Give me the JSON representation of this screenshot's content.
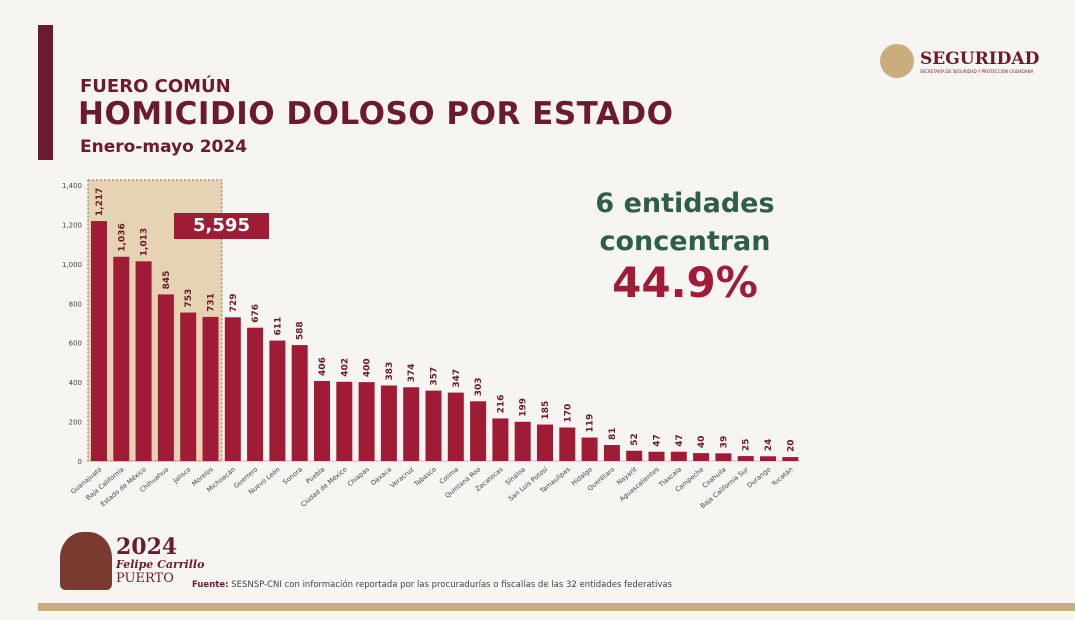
{
  "header": {
    "supertitle": "FUERO COMÚN",
    "title": "HOMICIDIO DOLOSO POR ESTADO",
    "subtitle": "Enero-mayo 2024",
    "logo": "SEGURIDAD",
    "logo_sub": "SECRETARÍA DE SEGURIDAD Y PROTECCIÓN CIUDADANA"
  },
  "highlight": {
    "total": "5,595",
    "line1": "6 entidades",
    "line2": "concentran",
    "percent": "44.9%"
  },
  "source": {
    "label": "Fuente:",
    "text": " SESNSP-CNI con información reportada por las procuradurías o fiscalías de las 32 entidades federativas"
  },
  "badge": {
    "year": "2024",
    "name": "Felipe Carrillo",
    "place": "PUERTO"
  },
  "colors": {
    "bar": "#a01c36",
    "highlight_box": "#e6d3b4",
    "dark": "#6b1b2b"
  },
  "chart_data": {
    "type": "bar",
    "title": "HOMICIDIO DOLOSO POR ESTADO",
    "ylim": [
      0,
      1400
    ],
    "yticks": [
      "0",
      "200",
      "400",
      "600",
      "800",
      "1,000",
      "1,200",
      "1,400"
    ],
    "categories": [
      "Guanajuato",
      "Baja California",
      "Estado de México",
      "Chihuahua",
      "Jalisco",
      "Morelos",
      "Michoacán",
      "Guerrero",
      "Nuevo León",
      "Sonora",
      "Puebla",
      "Ciudad de México",
      "Chiapas",
      "Oaxaca",
      "Veracruz",
      "Tabasco",
      "Colima",
      "Quintana Roo",
      "Zacatecas",
      "Sinaloa",
      "San Luis Potosí",
      "Tamaulipas",
      "Hidalgo",
      "Querétaro",
      "Nayarit",
      "Aguascalientes",
      "Tlaxcala",
      "Campeche",
      "Coahuila",
      "Baja California Sur",
      "Durango",
      "Yucatán"
    ],
    "values": [
      1217,
      1036,
      1013,
      845,
      753,
      731,
      729,
      676,
      611,
      588,
      406,
      402,
      400,
      383,
      374,
      357,
      347,
      303,
      216,
      199,
      185,
      170,
      119,
      81,
      52,
      47,
      47,
      40,
      39,
      25,
      24,
      20
    ],
    "labels": [
      "1,217",
      "1,036",
      "1,013",
      "845",
      "753",
      "731",
      "729",
      "676",
      "611",
      "588",
      "406",
      "402",
      "400",
      "383",
      "374",
      "357",
      "347",
      "303",
      "216",
      "199",
      "185",
      "170",
      "119",
      "81",
      "52",
      "47",
      "47",
      "40",
      "39",
      "25",
      "24",
      "20"
    ],
    "highlighted_count": 6
  }
}
